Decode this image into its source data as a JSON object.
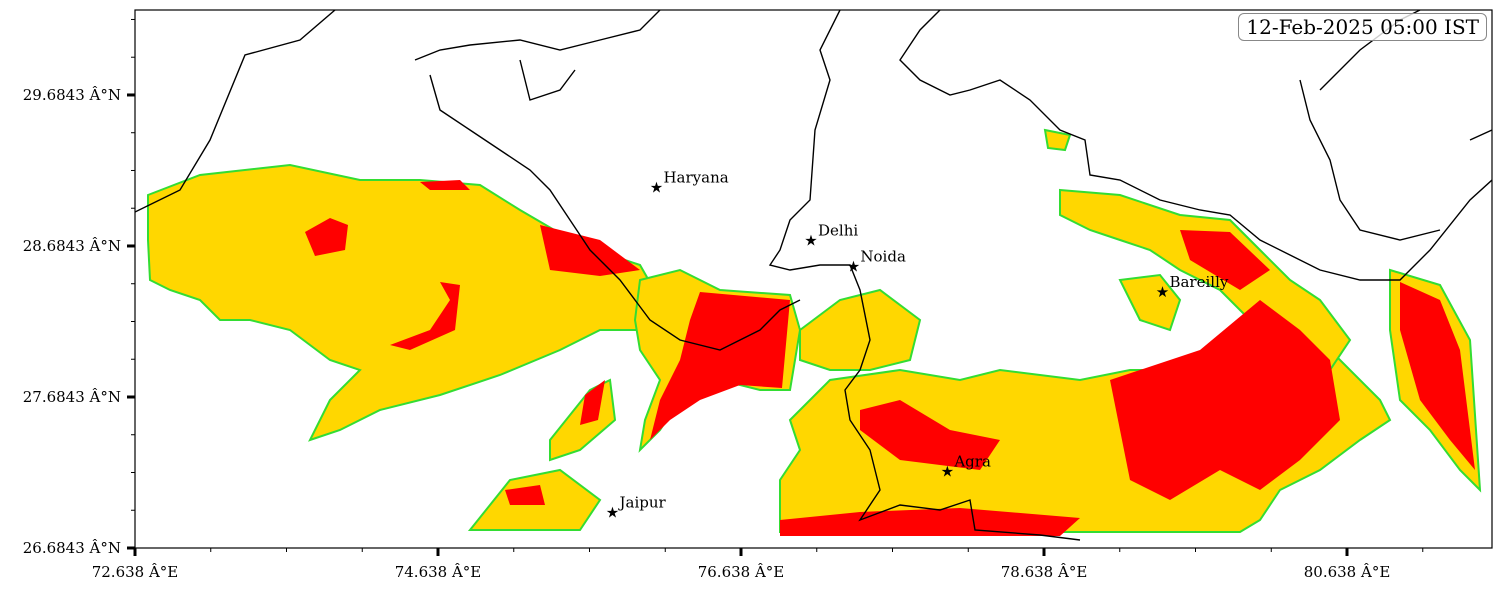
{
  "timestamp": "12-Feb-2025 05:00 IST",
  "map": {
    "lon_range": [
      72.638,
      81.595
    ],
    "lat_range": [
      26.6843,
      30.247
    ],
    "x_ticks": [
      "72.638 Â°E",
      "74.638 Â°E",
      "76.638 Â°E",
      "78.638 Â°E",
      "80.638 Â°E"
    ],
    "y_ticks": [
      "26.6843 Â°N",
      "27.6843 Â°N",
      "28.6843 Â°N",
      "29.6843 Â°N"
    ],
    "x_tick_values": [
      72.638,
      74.638,
      76.638,
      78.638,
      80.638
    ],
    "y_tick_values": [
      26.6843,
      27.6843,
      28.6843,
      29.6843
    ],
    "field_colors": {
      "outer": "#00E5EE",
      "edge": "#33DD33",
      "moderate": "#FFD700",
      "dense": "#FF0000"
    },
    "boundary_color": "#000000",
    "cities": [
      {
        "name": "Haryana",
        "lon": 76.08,
        "lat": 29.07
      },
      {
        "name": "Delhi",
        "lon": 77.1,
        "lat": 28.72
      },
      {
        "name": "Noida",
        "lon": 77.38,
        "lat": 28.55
      },
      {
        "name": "Bareilly",
        "lon": 79.42,
        "lat": 28.38
      },
      {
        "name": "Agra",
        "lon": 78.0,
        "lat": 27.19
      },
      {
        "name": "Jaipur",
        "lon": 75.79,
        "lat": 26.92
      }
    ]
  }
}
